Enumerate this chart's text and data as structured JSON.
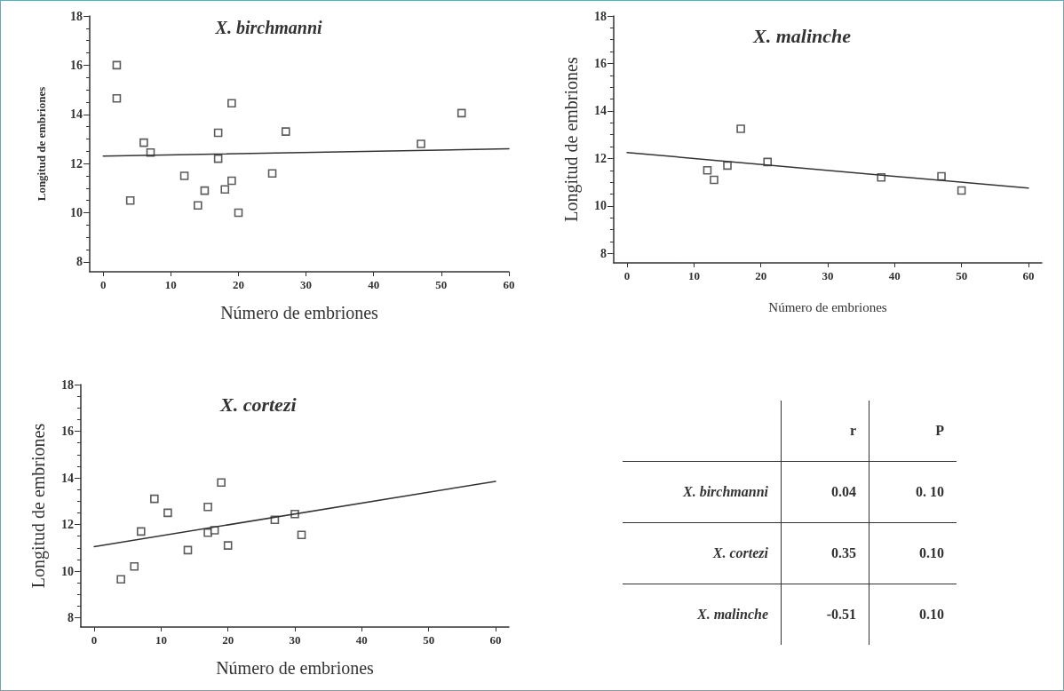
{
  "chart_data": [
    {
      "type": "scatter",
      "title": "X. birchmanni",
      "xlabel": "Número de embriones",
      "ylabel": "Longitud de embriones",
      "xlim": [
        -2,
        60
      ],
      "ylim": [
        7.6,
        18
      ],
      "xticks": [
        0,
        10,
        20,
        30,
        40,
        50,
        60
      ],
      "yticks": [
        8,
        10,
        12,
        14,
        16,
        18
      ],
      "grid": false,
      "marker": "square",
      "series": [
        {
          "color": "#333333",
          "x": [
            2,
            2,
            4,
            6,
            7,
            12,
            14,
            15,
            17,
            17,
            18,
            19,
            19,
            20,
            25,
            27,
            47,
            53
          ],
          "values": [
            16,
            14.65,
            10.5,
            12.85,
            12.45,
            11.5,
            10.3,
            10.9,
            13.25,
            12.2,
            10.95,
            14.45,
            11.3,
            10,
            11.6,
            13.3,
            12.8,
            14.05
          ]
        },
        {
          "type": "line",
          "marker": "none",
          "line_style": "solid",
          "color": "#333333",
          "x": [
            0,
            60
          ],
          "values": [
            12.3,
            12.6
          ]
        }
      ]
    },
    {
      "type": "scatter",
      "title": "X. malinche",
      "xlabel": "Número de embriones",
      "ylabel": "Longitud de embriones",
      "xlim": [
        -2,
        62
      ],
      "ylim": [
        7.6,
        18
      ],
      "xticks": [
        0,
        10,
        20,
        30,
        40,
        50,
        60
      ],
      "yticks": [
        8,
        10,
        12,
        14,
        16,
        18
      ],
      "grid": false,
      "marker": "square",
      "series": [
        {
          "color": "#333333",
          "x": [
            12,
            13,
            15,
            17,
            21,
            38,
            47,
            50
          ],
          "values": [
            11.5,
            11.1,
            11.7,
            13.25,
            11.85,
            11.2,
            11.25,
            10.65
          ]
        },
        {
          "type": "line",
          "marker": "none",
          "line_style": "solid",
          "color": "#333333",
          "x": [
            0,
            60
          ],
          "values": [
            12.25,
            10.75
          ]
        }
      ]
    },
    {
      "type": "scatter",
      "title": "X. cortezi",
      "xlabel": "Número de embriones",
      "ylabel": "Longitud de embriones",
      "xlim": [
        -2,
        62
      ],
      "ylim": [
        7.6,
        18
      ],
      "xticks": [
        0,
        10,
        20,
        30,
        40,
        50,
        60
      ],
      "yticks": [
        8,
        10,
        12,
        14,
        16,
        18
      ],
      "grid": false,
      "marker": "square",
      "series": [
        {
          "color": "#333333",
          "x": [
            4,
            6,
            7,
            9,
            11,
            14,
            17,
            17,
            18,
            19,
            20,
            27,
            30,
            31
          ],
          "values": [
            9.65,
            10.2,
            11.7,
            13.1,
            12.5,
            10.9,
            12.75,
            11.65,
            11.75,
            13.8,
            11.1,
            12.2,
            12.45,
            11.55
          ]
        },
        {
          "type": "line",
          "marker": "none",
          "line_style": "solid",
          "color": "#333333",
          "x": [
            0,
            60
          ],
          "values": [
            11.05,
            13.85
          ]
        }
      ]
    },
    {
      "type": "other",
      "categories": [
        "r",
        "P"
      ],
      "y_categories": [
        "X. birchmanni",
        "X. cortezi",
        "X. malinche"
      ],
      "cell_labels": [
        [
          "0.04",
          "0. 10"
        ],
        [
          "0.35",
          "0.10"
        ],
        [
          "-0.51",
          "0.10"
        ]
      ]
    }
  ]
}
